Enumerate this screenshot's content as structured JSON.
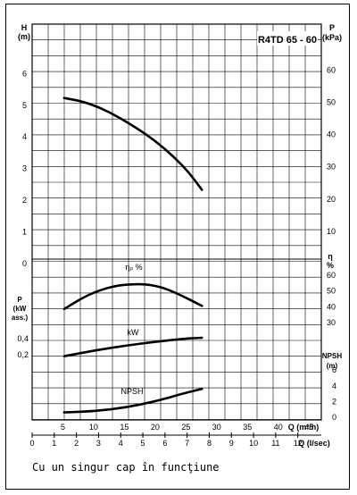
{
  "chart_data": {
    "type": "line",
    "title": "R4TD 65 - 60",
    "x_primary": {
      "label": "Q (m³/h)",
      "ticks": [
        "5",
        "10",
        "15",
        "20",
        "25",
        "30",
        "35",
        "40",
        "45"
      ],
      "range": [
        0,
        47
      ]
    },
    "x_secondary": {
      "label": "Q (l/sec)",
      "ticks": [
        "0",
        "1",
        "2",
        "3",
        "4",
        "5",
        "6",
        "7",
        "8",
        "9",
        "10",
        "11",
        "12"
      ],
      "range": [
        0,
        13.06
      ]
    },
    "panels": [
      {
        "id": "head",
        "left_axis": {
          "label_lines": [
            "H",
            "(m)"
          ],
          "ticks": [
            "1",
            "2",
            "3",
            "4",
            "5",
            "6"
          ],
          "range": [
            0,
            6.5
          ]
        },
        "right_axis": {
          "label_lines": [
            "P",
            "(kPa)"
          ],
          "ticks": [
            "10",
            "20",
            "30",
            "40",
            "50",
            "60"
          ],
          "range": [
            0,
            63.7
          ]
        },
        "series": [
          {
            "x": [
              5.2,
              8,
              11,
              14,
              17,
              20,
              23,
              25.5,
              27.6
            ],
            "y": [
              5.2,
              5.1,
              4.9,
              4.6,
              4.25,
              3.85,
              3.35,
              2.85,
              2.3
            ]
          }
        ]
      },
      {
        "id": "efficiency",
        "curve_label": "ηₚ %",
        "right_axis": {
          "label_lines": [
            "η",
            "%"
          ],
          "ticks": [
            "30",
            "40",
            "50",
            "60"
          ],
          "range": [
            25,
            68
          ]
        },
        "left_axis": {
          "ticks": [
            "0"
          ]
        },
        "series": [
          {
            "x": [
              5.2,
              9,
              13,
              17,
              20,
              23,
              27.6
            ],
            "y": [
              38,
              47,
              52.5,
              54,
              53,
              49,
              40
            ]
          }
        ]
      },
      {
        "id": "power",
        "curve_label": "kW",
        "left_axis": {
          "label_lines": [
            "P",
            "(kW",
            "ass.)"
          ],
          "ticks": [
            "0,2",
            "0,4"
          ],
          "range": [
            0,
            0.6
          ]
        },
        "series": [
          {
            "x": [
              5.2,
              10,
              15,
              20,
              25,
              27.6
            ],
            "y": [
              0.17,
              0.24,
              0.3,
              0.35,
              0.39,
              0.4
            ]
          }
        ]
      },
      {
        "id": "npsh",
        "curve_label": "NPSH",
        "right_axis": {
          "label_lines": [
            "NPSH",
            "(m)"
          ],
          "ticks": [
            "0",
            "2",
            "4",
            "6"
          ],
          "range": [
            0,
            7.2
          ]
        },
        "series": [
          {
            "x": [
              5.2,
              10,
              15,
              20,
              25,
              27.6
            ],
            "y": [
              0.5,
              0.65,
              1.1,
              1.9,
              3.0,
              3.5
            ]
          }
        ]
      }
    ],
    "grid": true
  },
  "caption": "Cu un singur cap în funcţiune"
}
